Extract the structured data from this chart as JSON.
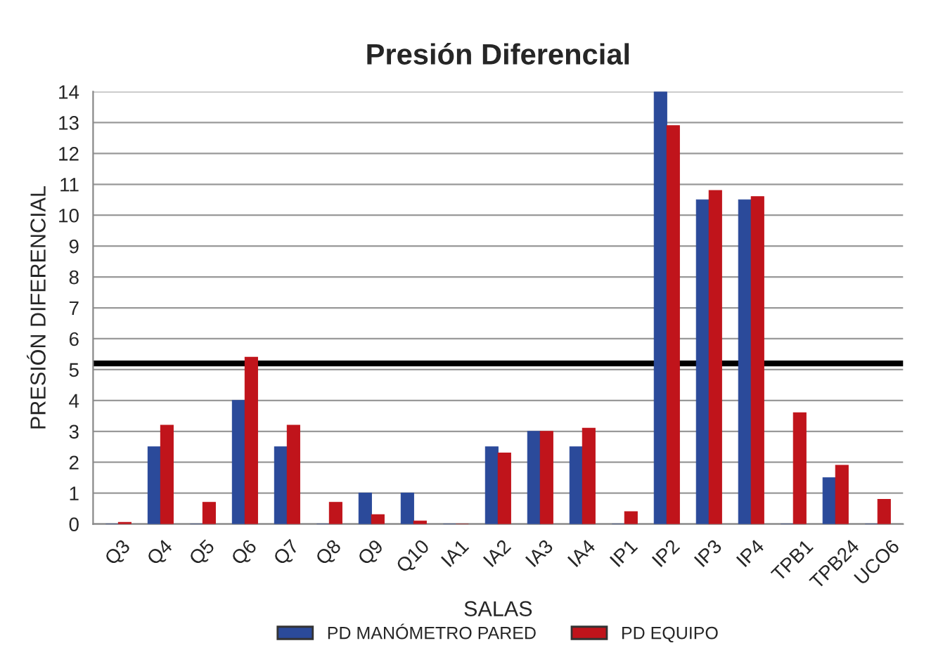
{
  "chart_data": {
    "type": "bar",
    "title": "Presión Diferencial",
    "xlabel": "SALAS",
    "ylabel": "PRESIÓN DIFERENCIAL",
    "categories": [
      "Q3",
      "Q4",
      "Q5",
      "Q6",
      "Q7",
      "Q8",
      "Q9",
      "Q10",
      "IA1",
      "IA2",
      "IA3",
      "IA4",
      "IP1",
      "IP2",
      "IP3",
      "IP4",
      "TPB1",
      "TPB24",
      "UCO6"
    ],
    "series": [
      {
        "name": "PD MANÓMETRO PARED",
        "color": "#2b4a9a",
        "values": [
          0,
          2.5,
          0,
          4,
          2.5,
          0,
          1,
          1,
          0,
          2.5,
          3,
          2.5,
          0,
          14,
          10.5,
          10.5,
          0,
          1.5,
          0
        ]
      },
      {
        "name": "PD EQUIPO",
        "color": "#c0141b",
        "values": [
          0.05,
          3.2,
          0.7,
          5.4,
          3.2,
          0.7,
          0.3,
          0.1,
          0,
          2.3,
          3,
          3.1,
          0.4,
          12.9,
          10.8,
          10.6,
          3.6,
          1.9,
          0.8
        ]
      }
    ],
    "ylim": [
      0,
      14
    ],
    "yticks": [
      0,
      1,
      2,
      3,
      4,
      5,
      6,
      7,
      8,
      9,
      10,
      11,
      12,
      13,
      14
    ],
    "grid": "y",
    "legend": "bottom",
    "ref_lines": [
      {
        "axis": "y",
        "value": 5.2,
        "color": "#000000"
      }
    ]
  }
}
